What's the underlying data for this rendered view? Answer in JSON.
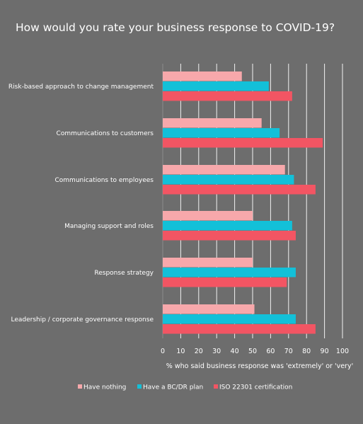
{
  "chart_data": {
    "type": "bar",
    "orientation": "horizontal",
    "title": "How would you rate your business response to COVID-19?",
    "xlabel": "% who said business response was 'extremely' or 'very'",
    "ylabel": "",
    "xlim": [
      0,
      100
    ],
    "xticks": [
      0,
      10,
      20,
      30,
      40,
      50,
      60,
      70,
      80,
      90,
      100
    ],
    "grid": "vertical",
    "legend_position": "bottom",
    "categories": [
      "Risk-based approach to change management",
      "Communications to customers",
      "Communications to employees",
      "Managing support and roles",
      "Response strategy",
      "Leadership / corporate governance response"
    ],
    "series": [
      {
        "name": "Have nothing",
        "color": "#f7a8ab",
        "values": [
          44,
          55,
          68,
          50,
          50,
          51
        ]
      },
      {
        "name": "Have a BC/DR plan",
        "color": "#13c0d8",
        "values": [
          59,
          65,
          73,
          72,
          74,
          74
        ]
      },
      {
        "name": "ISO 22301 certification",
        "color": "#f25563",
        "values": [
          72,
          89,
          85,
          74,
          69,
          85
        ]
      }
    ]
  }
}
